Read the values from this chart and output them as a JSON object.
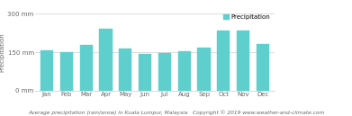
{
  "months": [
    "Jan",
    "Feb",
    "Mar",
    "Apr",
    "May",
    "Jun",
    "Jul",
    "Aug",
    "Sep",
    "Oct",
    "Nov",
    "Dec"
  ],
  "precipitation": [
    158,
    150,
    178,
    243,
    165,
    143,
    145,
    152,
    168,
    233,
    235,
    182
  ],
  "bar_color": "#5ecfcc",
  "bar_edge_color": "#5ecfcc",
  "ylim": [
    0,
    300
  ],
  "ytick_labels": [
    "0 mm",
    "150 mm",
    "300 mm"
  ],
  "ytick_values": [
    0,
    150,
    300
  ],
  "ylabel": "Precipitation",
  "xlabel_text": "Average precipitation (rain/snow) in Kuala Lumpur, Malaysia   Copyright © 2019 www.weather-and-climate.com",
  "legend_label": "Precipitation",
  "legend_color": "#5ecfcc",
  "bg_color": "#ffffff",
  "grid_color": "#cccccc",
  "tick_fontsize": 5.0,
  "ylabel_fontsize": 5.0,
  "xlabel_fontsize": 4.2,
  "legend_fontsize": 5.0
}
